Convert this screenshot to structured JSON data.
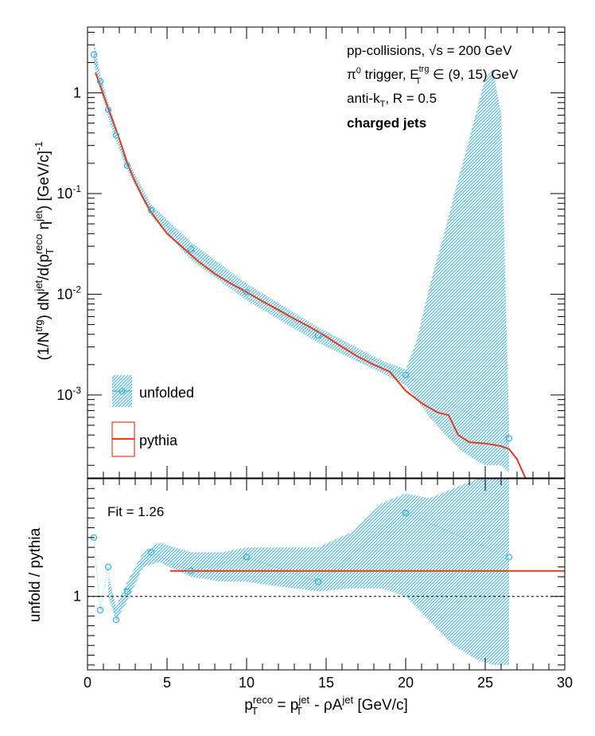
{
  "chart_data": [
    {
      "type": "scatter",
      "panel": "top",
      "ylabel": "(1/N^{trg}) dN^{jet}/d(p_{T}^{reco} η^{jet}) [GeV/c]^{-1}",
      "yscale": "log",
      "ylim": [
        0.00015,
        4.5
      ],
      "xlim": [
        0,
        30
      ],
      "y_tick_labels": [
        "10^{-3}",
        "10^{-2}",
        "10^{-1}",
        "1"
      ],
      "annotations": [
        "pp-collisions, √s = 200 GeV",
        "π⁰ trigger, E_T^trg ∈ (9, 15) GeV",
        "anti-k_T, R = 0.5",
        "charged jets"
      ],
      "legend": {
        "placement": "bottom-left",
        "entries": [
          "unfolded",
          "pythia"
        ]
      },
      "series": [
        {
          "name": "unfolded",
          "style": "points-with-band",
          "color": "#41b4d8",
          "x": [
            0.4,
            0.8,
            1.3,
            1.8,
            2.5,
            4.0,
            6.5,
            10.0,
            14.5,
            20.0,
            26.5
          ],
          "y": [
            2.4,
            1.3,
            0.68,
            0.38,
            0.19,
            0.068,
            0.028,
            0.0105,
            0.0039,
            0.00158,
            0.00037
          ]
        },
        {
          "name": "pythia",
          "style": "line",
          "color": "#e8391a",
          "x": [
            0.5,
            1.0,
            1.5,
            2.0,
            2.5,
            3.0,
            3.5,
            4.0,
            5.0,
            6.0,
            7.0,
            8.0,
            9.0,
            10.0,
            11.0,
            12.0,
            13.0,
            14.0,
            15.0,
            16.0,
            17.0,
            18.0,
            19.0,
            20.0,
            21.0,
            22.0,
            22.7,
            23.3,
            24.0,
            25.0,
            26.0,
            26.5,
            27.0,
            27.7,
            28.5,
            29.5
          ],
          "y": [
            1.6,
            0.95,
            0.58,
            0.35,
            0.2,
            0.13,
            0.09,
            0.065,
            0.04,
            0.029,
            0.021,
            0.016,
            0.0128,
            0.0105,
            0.0085,
            0.007,
            0.0057,
            0.0047,
            0.0038,
            0.003,
            0.0024,
            0.002,
            0.0017,
            0.0011,
            0.00083,
            0.00067,
            0.00063,
            0.0004,
            0.00034,
            0.00033,
            0.00031,
            0.00029,
            0.00023,
            0.00013,
            9.5e-05,
            0.00014
          ]
        }
      ],
      "band_unfolded": {
        "x": [
          0.4,
          0.8,
          1.3,
          1.8,
          2.5,
          4.0,
          6.5,
          10.0,
          14.5,
          18.5,
          20.0,
          20.7,
          21.5,
          22.5,
          23.5,
          24.5,
          25.0,
          25.5,
          26.0,
          26.5
        ],
        "low": [
          1.9,
          1.1,
          0.57,
          0.33,
          0.17,
          0.06,
          0.022,
          0.0087,
          0.0033,
          0.00165,
          0.00125,
          0.0009,
          0.0006,
          0.0004,
          0.00028,
          0.00022,
          0.0002,
          0.0002,
          0.0002,
          0.00017
        ],
        "high": [
          3.3,
          1.55,
          0.8,
          0.45,
          0.22,
          0.078,
          0.033,
          0.0128,
          0.0047,
          0.0022,
          0.0018,
          0.0035,
          0.012,
          0.045,
          0.18,
          0.7,
          1.4,
          1.7,
          0.6,
          0.0005
        ]
      }
    },
    {
      "type": "scatter",
      "panel": "bottom",
      "xlabel": "p_{T}^{reco} = p_{T}^{jet} - ρA^{jet} [GeV/c]",
      "ylabel": "unfold / pythia",
      "xlim": [
        0,
        30
      ],
      "ylim": [
        0.25,
        2.2
      ],
      "x_tick_labels": [
        "0",
        "5",
        "10",
        "15",
        "20",
        "25",
        "30"
      ],
      "y_tick_labels": [
        "1"
      ],
      "annotations": [
        "Fit = 1.26"
      ],
      "reference_line": 1.0,
      "fit": {
        "value": 1.26,
        "x_range": [
          5.2,
          30
        ],
        "color": "#e8391a"
      },
      "series": [
        {
          "name": "unfolded",
          "style": "points-with-band",
          "color": "#41b4d8",
          "x": [
            0.4,
            0.8,
            1.3,
            1.8,
            2.5,
            4.0,
            6.5,
            10.0,
            14.5,
            20.0,
            26.5
          ],
          "y": [
            1.6,
            0.86,
            1.3,
            0.76,
            1.05,
            1.45,
            1.26,
            1.4,
            1.15,
            1.85,
            1.4
          ]
        }
      ],
      "band_unfolded": {
        "x": [
          1.3,
          1.8,
          2.5,
          3.5,
          4.5,
          6.5,
          8.5,
          10.0,
          12.0,
          14.5,
          16.5,
          18.5,
          20.0,
          21.5,
          23.0,
          24.5,
          25.5,
          26.5
        ],
        "low": [
          1.0,
          0.75,
          0.95,
          1.3,
          1.35,
          1.2,
          1.15,
          1.15,
          1.1,
          1.05,
          1.08,
          1.08,
          1.0,
          0.75,
          0.5,
          0.35,
          0.3,
          0.3
        ],
        "high": [
          1.2,
          0.9,
          1.15,
          1.45,
          1.55,
          1.45,
          1.45,
          1.5,
          1.5,
          1.5,
          1.65,
          1.95,
          2.05,
          2.0,
          2.1,
          2.2,
          2.2,
          2.2
        ]
      }
    }
  ]
}
